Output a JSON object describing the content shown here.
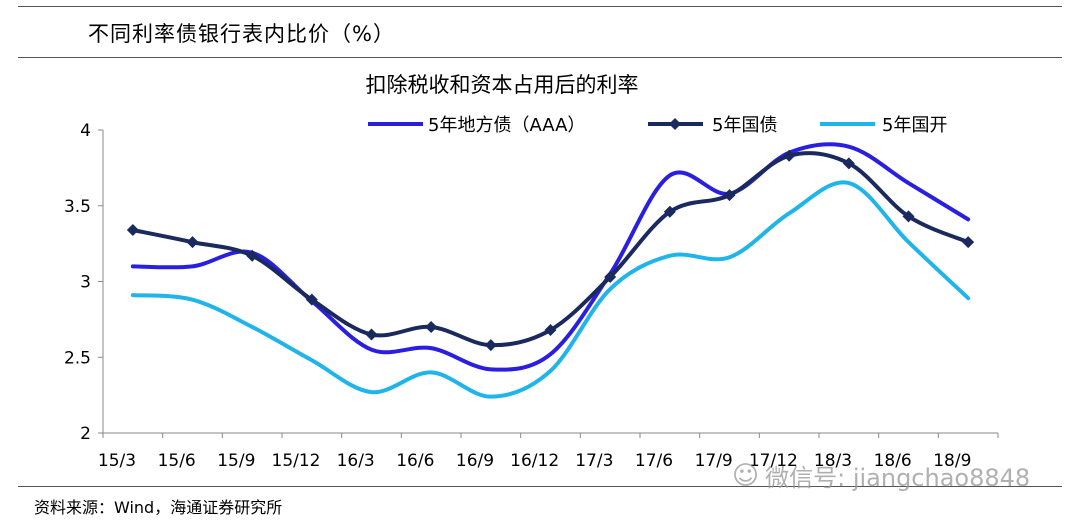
{
  "header": {
    "title": "不同利率债银行表内比价（%）"
  },
  "chart_data": {
    "type": "line",
    "title": "扣除税收和资本占用后的利率",
    "categories": [
      "15/3",
      "15/6",
      "15/9",
      "15/12",
      "16/3",
      "16/6",
      "16/9",
      "16/12",
      "17/3",
      "17/6",
      "17/9",
      "17/12",
      "18/3",
      "18/6",
      "18/9"
    ],
    "ytick_labels": [
      "4",
      "3.5",
      "3",
      "2.5",
      "2"
    ],
    "yticks": [
      4,
      3.5,
      3,
      2.5,
      2
    ],
    "ylim": [
      2,
      4
    ],
    "xlabel": "",
    "ylabel": "",
    "legend_position": "top-right",
    "series": [
      {
        "name": "5年地方债（AAA）",
        "color": "#2a1fe0",
        "values": [
          3.1,
          3.1,
          3.19,
          2.87,
          2.55,
          2.56,
          2.42,
          2.52,
          3.05,
          3.7,
          3.58,
          3.85,
          3.89,
          3.65,
          3.41
        ]
      },
      {
        "name": "5年国债",
        "color": "#1a2a5e",
        "values": [
          3.34,
          3.26,
          3.17,
          2.88,
          2.65,
          2.7,
          2.58,
          2.68,
          3.03,
          3.46,
          3.57,
          3.83,
          3.78,
          3.43,
          3.26
        ]
      },
      {
        "name": "5年国开",
        "color": "#1fb4ea",
        "values": [
          2.91,
          2.88,
          2.7,
          2.48,
          2.27,
          2.4,
          2.24,
          2.41,
          2.95,
          3.17,
          3.16,
          3.45,
          3.65,
          3.26,
          2.89
        ]
      }
    ]
  },
  "source": {
    "text": "资料来源：Wind，海通证券研究所"
  },
  "watermark": {
    "text": "微信号: jiangchao8848"
  }
}
